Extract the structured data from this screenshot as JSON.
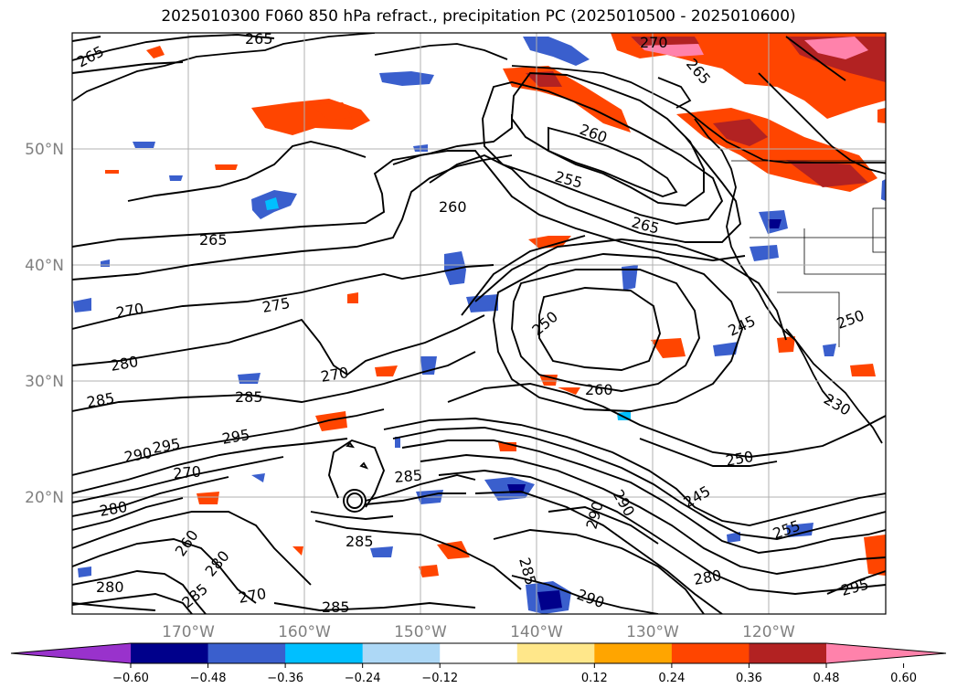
{
  "title": "2025010300 F060 850 hPa refract., precipitation PC (2025010500 - 2025010600)",
  "map": {
    "lon_labels": [
      "170°W",
      "160°W",
      "150°W",
      "140°W",
      "130°W",
      "120°W"
    ],
    "lat_labels": [
      "50°N",
      "40°N",
      "30°N",
      "20°N"
    ],
    "contour_labels": [
      "265",
      "265",
      "265",
      "270",
      "275",
      "280",
      "285",
      "290",
      "295",
      "270",
      "285",
      "260",
      "255",
      "265",
      "260",
      "270",
      "265",
      "250",
      "245",
      "260",
      "250",
      "245",
      "250",
      "230",
      "290",
      "280",
      "290",
      "285",
      "280",
      "270",
      "285",
      "255",
      "280",
      "295",
      "290",
      "280",
      "260",
      "285",
      "295",
      "270",
      "285",
      "285"
    ]
  },
  "colorbar": {
    "ticks": [
      "−0.60",
      "−0.48",
      "−0.36",
      "−0.24",
      "−0.12",
      "0.12",
      "0.24",
      "0.36",
      "0.48",
      "0.60"
    ],
    "colors": [
      "#9932cc",
      "#00008b",
      "#3a5fcd",
      "#00bfff",
      "#add8f6",
      "#ffffff",
      "#ffe78a",
      "#ffa500",
      "#ff4500",
      "#b22222",
      "#ff82ab"
    ]
  }
}
